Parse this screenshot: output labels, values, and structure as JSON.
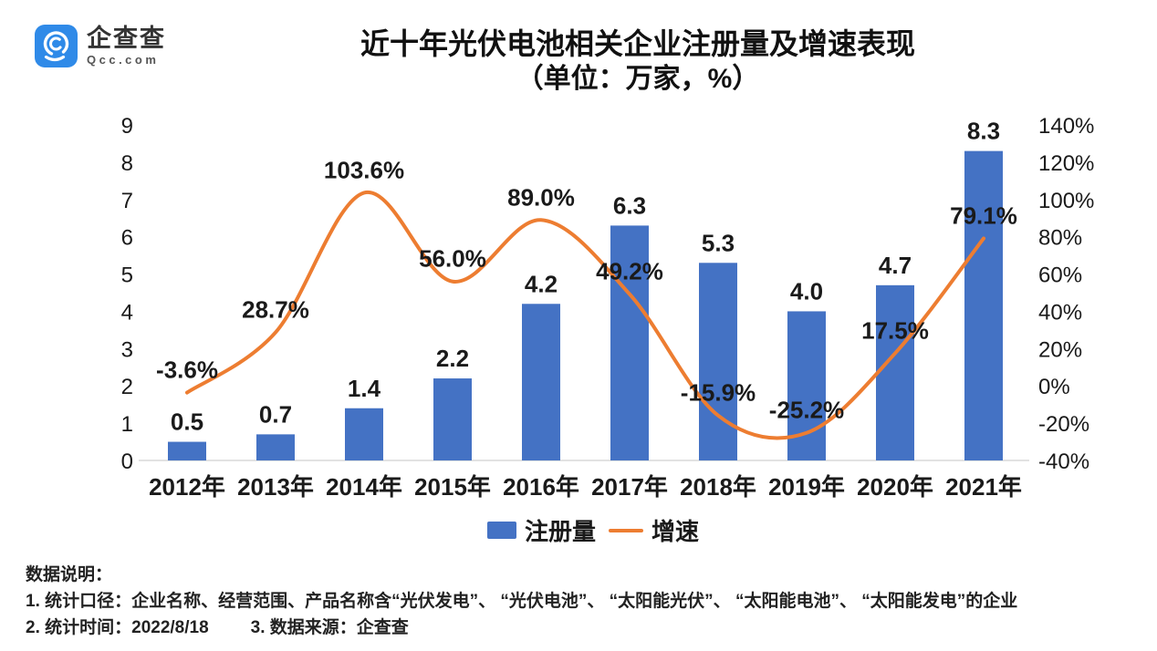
{
  "logo": {
    "name": "企查查",
    "domain": "Qcc.com"
  },
  "title": {
    "line1": "近十年光伏电池相关企业注册量及增速表现",
    "line2": "（单位：万家，%）"
  },
  "chart_data": {
    "type": "bar+line combo",
    "categories": [
      "2012年",
      "2013年",
      "2014年",
      "2015年",
      "2016年",
      "2017年",
      "2018年",
      "2019年",
      "2020年",
      "2021年"
    ],
    "series": [
      {
        "name": "注册量",
        "type": "bar",
        "axis": "left",
        "color": "#4472C4",
        "values": [
          0.5,
          0.7,
          1.4,
          2.2,
          4.2,
          6.3,
          5.3,
          4.0,
          4.7,
          8.3
        ],
        "labels": [
          "0.5",
          "0.7",
          "1.4",
          "2.2",
          "4.2",
          "6.3",
          "5.3",
          "4.0",
          "4.7",
          "8.3"
        ]
      },
      {
        "name": "增速",
        "type": "line",
        "axis": "right",
        "color": "#ED7D31",
        "values": [
          -3.6,
          28.7,
          103.6,
          56.0,
          89.0,
          49.2,
          -15.9,
          -25.2,
          17.5,
          79.1
        ],
        "labels": [
          "-3.6%",
          "28.7%",
          "103.6%",
          "56.0%",
          "89.0%",
          "49.2%",
          "-15.9%",
          "-25.2%",
          "17.5%",
          "79.1%"
        ]
      }
    ],
    "left_axis": {
      "min": 0,
      "max": 9,
      "step": 1,
      "ticks": [
        0,
        1,
        2,
        3,
        4,
        5,
        6,
        7,
        8,
        9
      ],
      "suffix": ""
    },
    "right_axis": {
      "min": -40,
      "max": 140,
      "step": 20,
      "ticks": [
        -40,
        -20,
        0,
        20,
        40,
        60,
        80,
        100,
        120,
        140
      ],
      "suffix": "%"
    },
    "grid": "off",
    "legend_position": "bottom",
    "axis_line_color": "#d8d8d8",
    "label_color": "#1a1a1a"
  },
  "footer": {
    "heading": "数据说明：",
    "line1": "1. 统计口径：企业名称、经营范围、产品名称含“光伏发电”、 “光伏电池”、 “太阳能光伏”、 “太阳能电池”、 “太阳能发电”的企业",
    "line2_left": "2. 统计时间：2022/8/18",
    "line2_right": "3. 数据来源：企查查"
  }
}
